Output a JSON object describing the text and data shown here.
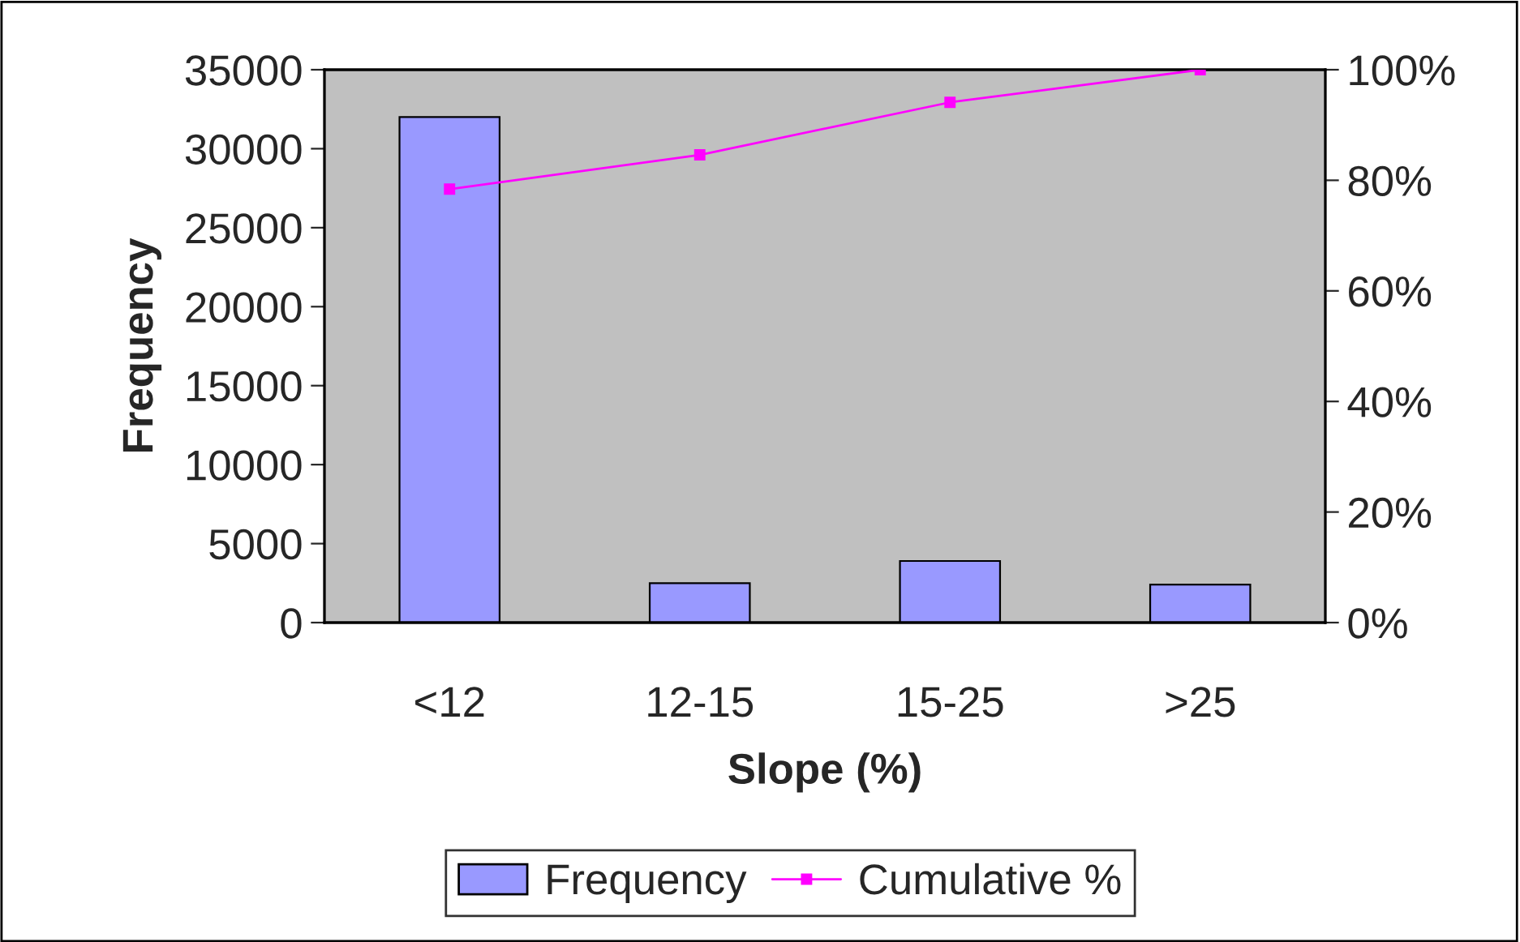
{
  "chart_data": {
    "type": "bar",
    "xlabel": "Slope (%)",
    "ylabel": "Frequency",
    "categories": [
      "<12",
      "12-15",
      "15-25",
      ">25"
    ],
    "series": [
      {
        "name": "Frequency",
        "color": "#9999ff",
        "values": [
          32000,
          2500,
          3900,
          2400
        ]
      },
      {
        "name": "Cumulative %",
        "type": "line",
        "axis": "y2",
        "color": "#ff00ff",
        "marker": "square",
        "values": [
          78.4,
          84.6,
          94.1,
          100
        ]
      }
    ],
    "ylim": [
      0,
      35000
    ],
    "yticks": [
      0,
      5000,
      10000,
      15000,
      20000,
      25000,
      30000,
      35000
    ],
    "y2lim": [
      0,
      100
    ],
    "y2ticks": [
      {
        "value": 0,
        "label": "0%"
      },
      {
        "value": 20,
        "label": "20%"
      },
      {
        "value": 40,
        "label": "40%"
      },
      {
        "value": 60,
        "label": "60%"
      },
      {
        "value": 80,
        "label": "80%"
      },
      {
        "value": 100,
        "label": "100%"
      }
    ],
    "grid": false,
    "legend": "bottom"
  }
}
